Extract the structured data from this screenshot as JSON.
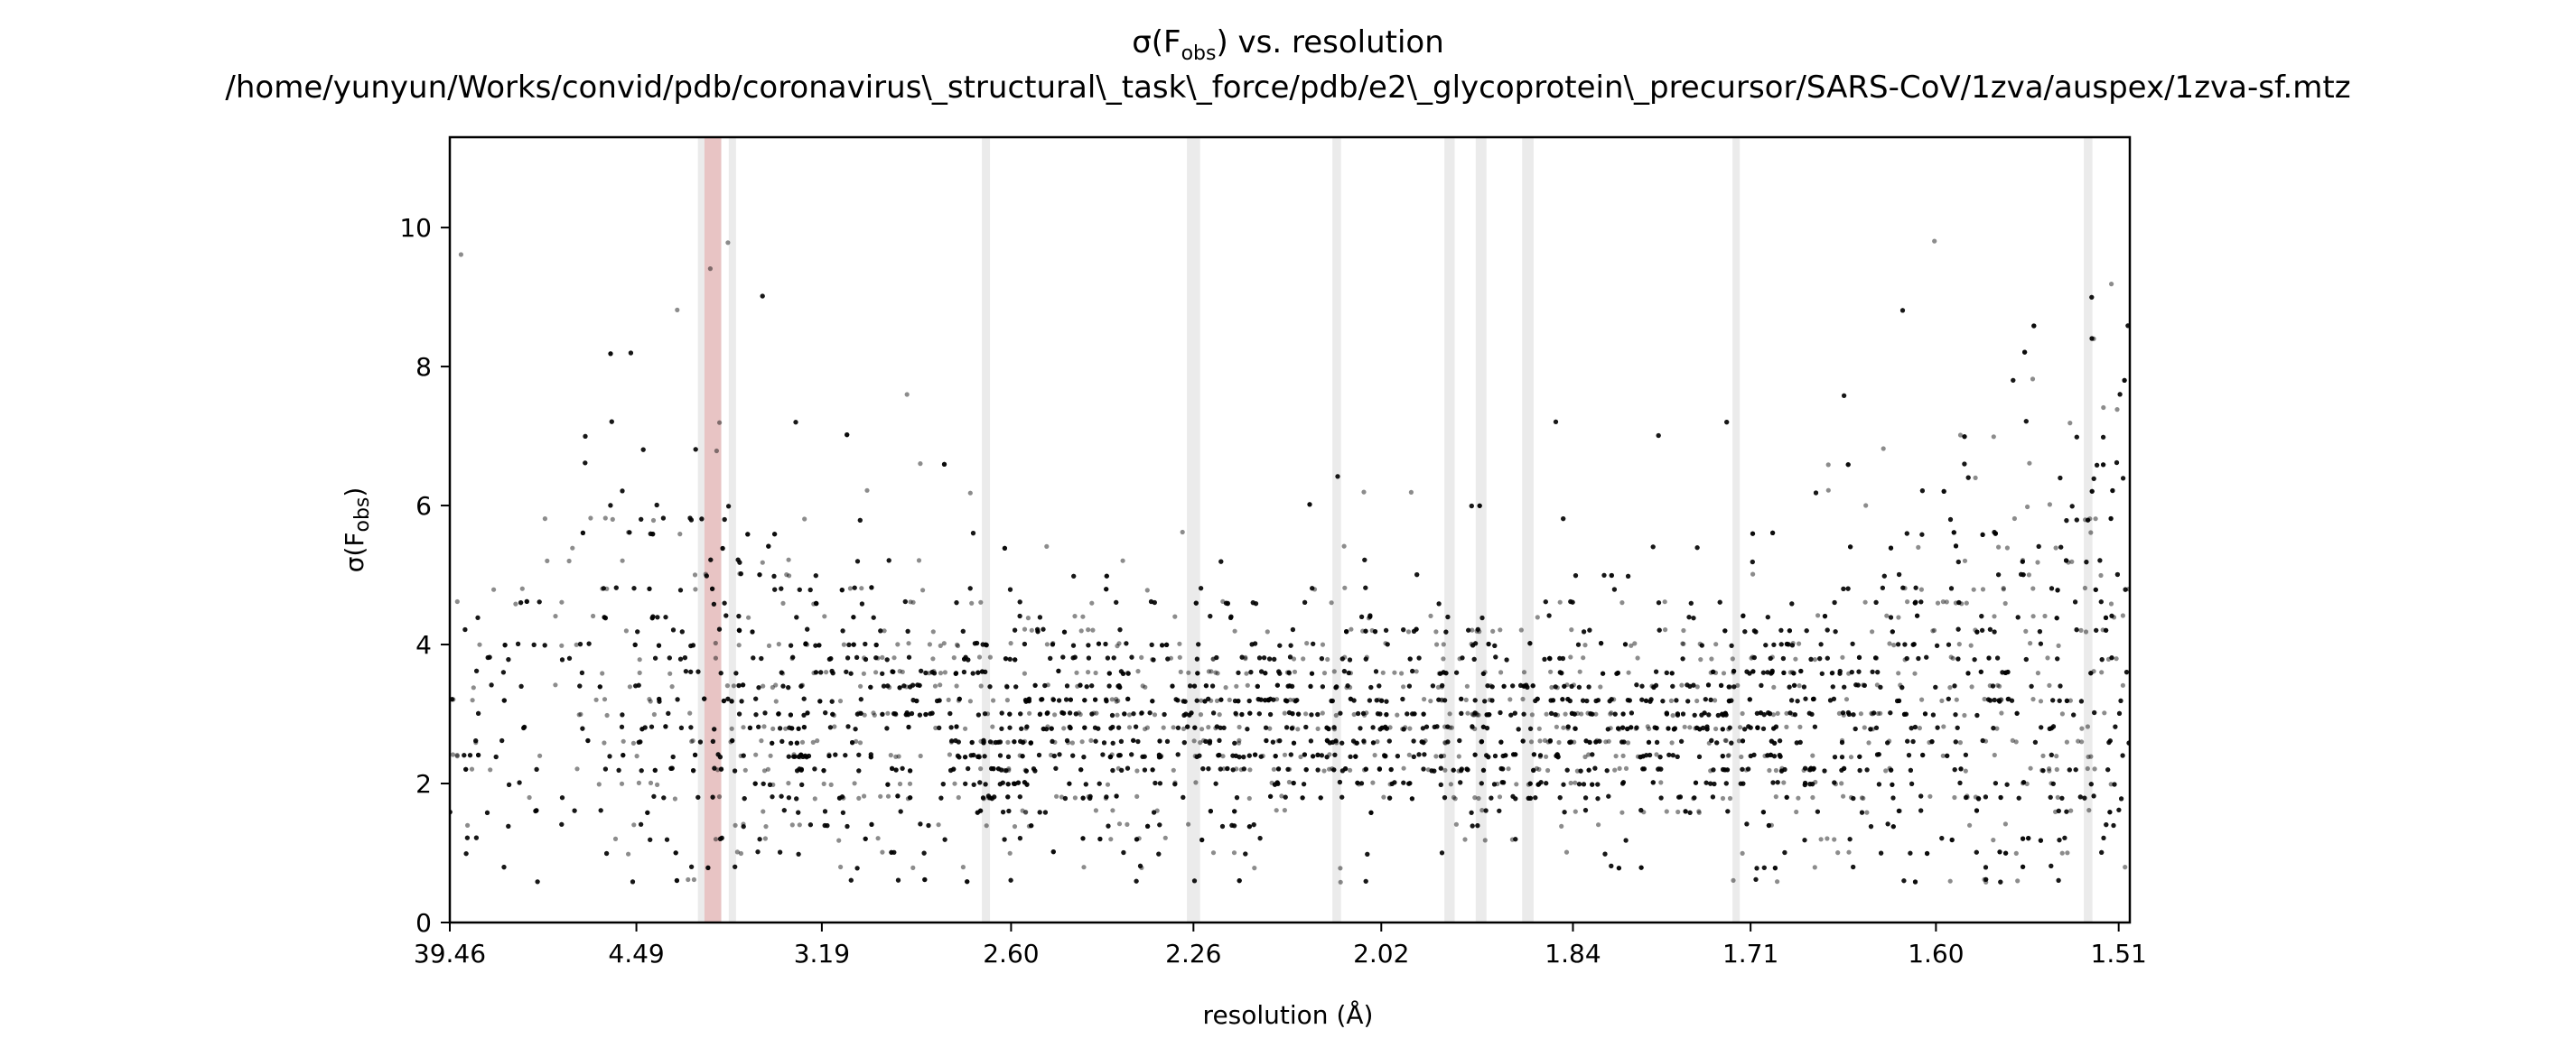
{
  "chart_data": {
    "type": "scatter",
    "title_prefix": "σ(F",
    "title_subscript": "obs",
    "title_suffix": ") vs. resolution",
    "subtitle": "/home/yunyun/Works/convid/pdb/coronavirus\\_structural\\_task\\_force/pdb/e2\\_glycoprotein\\_precursor/SARS-CoV/1zva/auspex/1zva-sf.mtz",
    "xlabel": "resolution (Å)",
    "ylabel_prefix": "σ(F",
    "ylabel_subscript": "obs",
    "ylabel_suffix": ")",
    "x_scale": "inverse-square of resolution (1/d²)",
    "xlim": [
      39.46,
      1.505
    ],
    "ylim": [
      0,
      11.3
    ],
    "x_ticks": [
      39.46,
      4.49,
      3.19,
      2.6,
      2.26,
      2.02,
      1.84,
      1.71,
      1.6,
      1.51
    ],
    "x_tick_labels": [
      "39.46",
      "4.49",
      "3.19",
      "2.60",
      "2.26",
      "2.02",
      "1.84",
      "1.71",
      "1.60",
      "1.51"
    ],
    "y_ticks": [
      0,
      2,
      4,
      6,
      8,
      10
    ],
    "y_tick_labels": [
      "0",
      "2",
      "4",
      "6",
      "8",
      "10"
    ],
    "grid": false,
    "point_color": "#000000",
    "point_opacity": 0.45,
    "ice_ring_color": "#ebebeb",
    "flagged_band_color": "#e8c4c4",
    "ice_rings": [
      [
        3.9,
        3.86
      ],
      [
        3.68,
        3.64
      ],
      [
        2.67,
        2.65
      ],
      [
        2.27,
        2.25
      ],
      [
        2.075,
        2.065
      ],
      [
        1.955,
        1.945
      ],
      [
        1.925,
        1.915
      ],
      [
        1.883,
        1.873
      ],
      [
        1.722,
        1.718
      ],
      [
        1.526,
        1.522
      ]
    ],
    "flagged_bands": [
      [
        3.85,
        3.73
      ]
    ],
    "density_profile": {
      "description": "point cloud summary by resolution: median sigma, spread, point density",
      "d": [
        8.0,
        5.0,
        4.0,
        3.5,
        3.2,
        2.8,
        2.6,
        2.4,
        2.2,
        2.0,
        1.9,
        1.8,
        1.7,
        1.65,
        1.6,
        1.55,
        1.51
      ],
      "median": [
        3.0,
        3.4,
        3.3,
        3.1,
        3.0,
        2.9,
        2.8,
        2.8,
        2.9,
        2.9,
        2.85,
        2.8,
        2.8,
        2.9,
        3.0,
        3.3,
        3.8
      ],
      "spread": [
        1.5,
        1.7,
        1.6,
        1.4,
        1.2,
        1.0,
        0.9,
        0.8,
        0.8,
        0.75,
        0.75,
        0.8,
        0.9,
        1.1,
        1.3,
        1.8,
        2.4
      ],
      "density": [
        0.3,
        0.6,
        0.8,
        0.9,
        1.0,
        1.0,
        1.0,
        1.0,
        1.0,
        1.05,
        1.05,
        1.0,
        0.95,
        0.95,
        0.95,
        1.0,
        1.0
      ]
    }
  }
}
